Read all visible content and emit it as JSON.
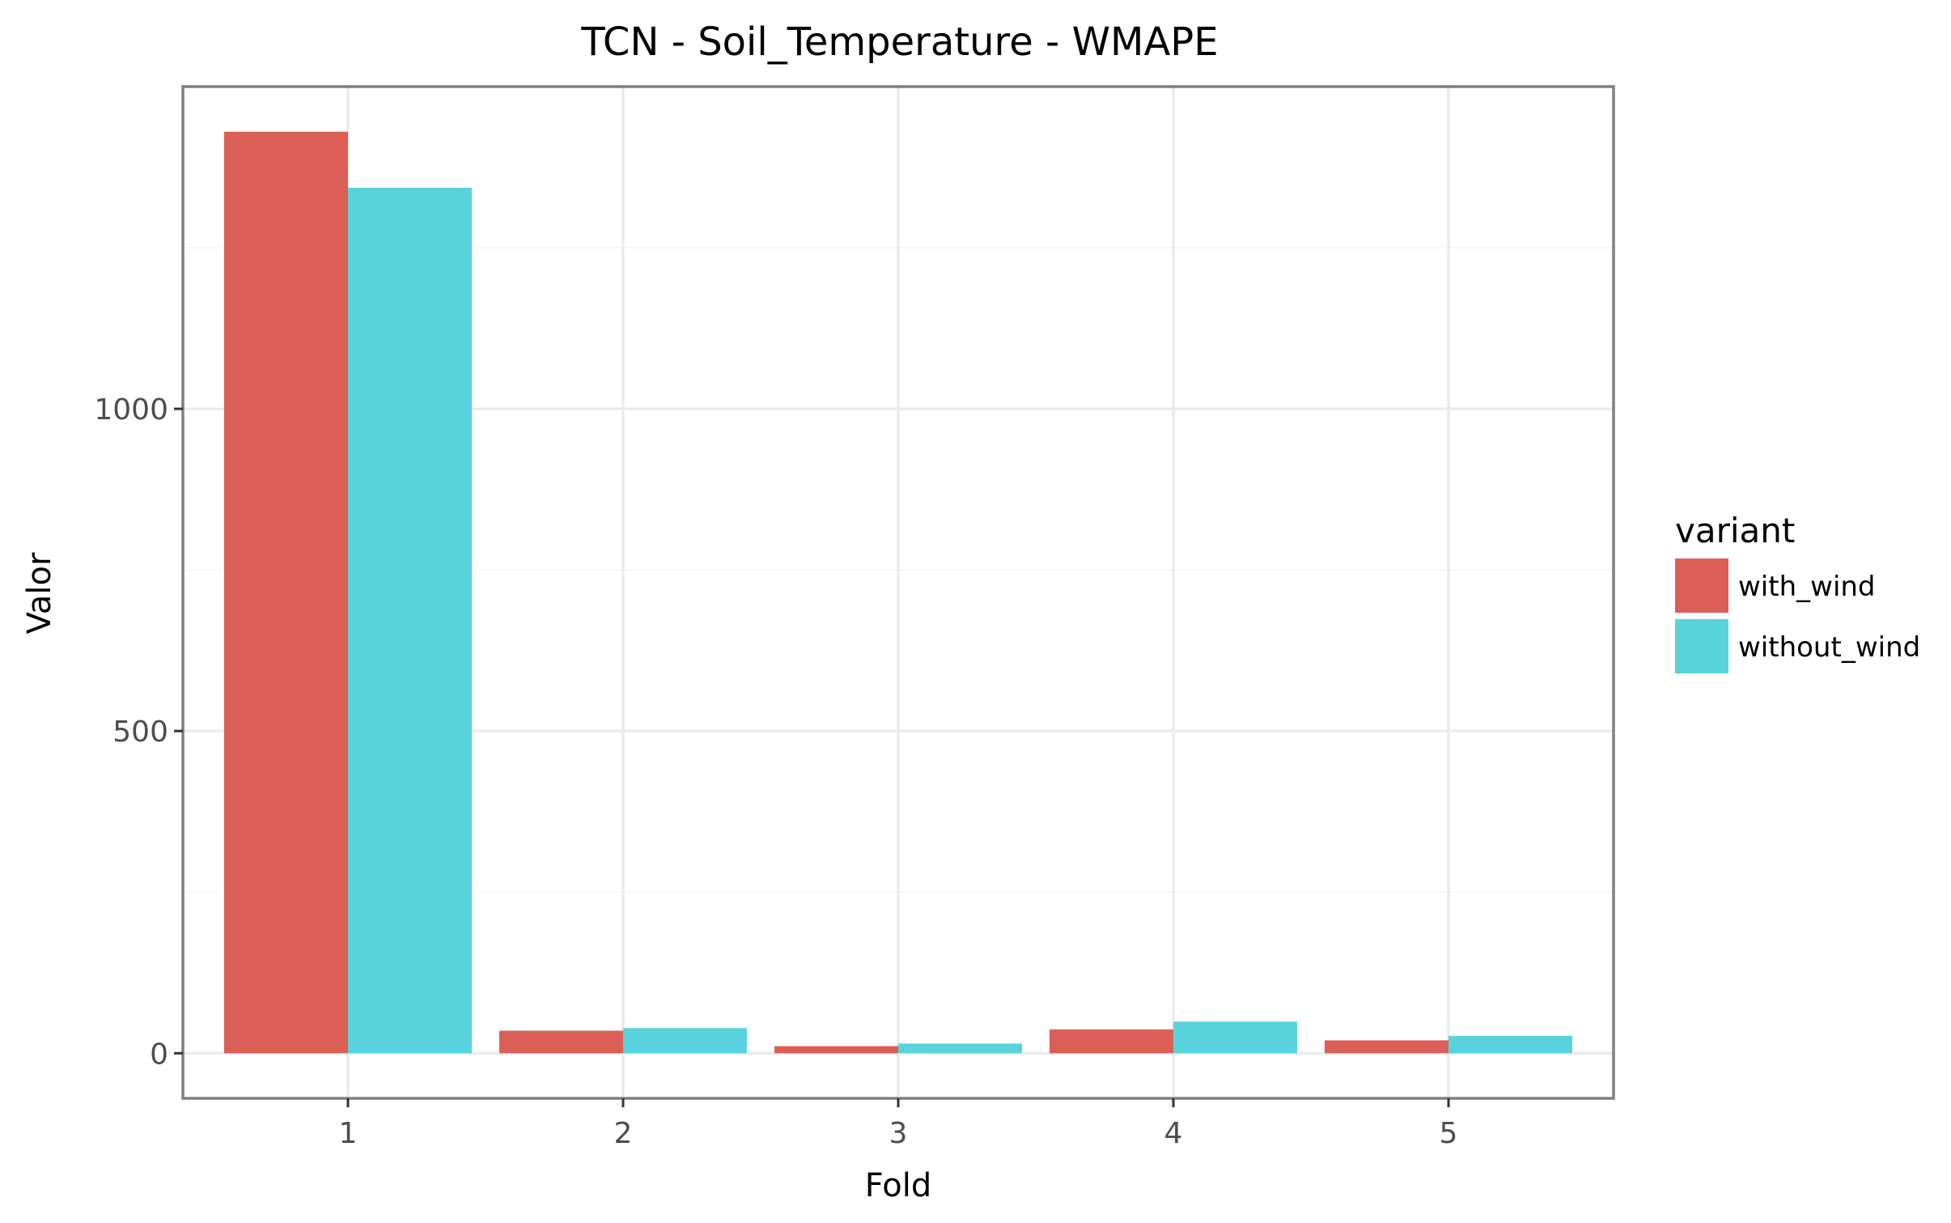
{
  "chart_data": {
    "type": "bar",
    "title": "TCN - Soil_Temperature - WMAPE",
    "xlabel": "Fold",
    "ylabel": "Valor",
    "categories": [
      "1",
      "2",
      "3",
      "4",
      "5"
    ],
    "series": [
      {
        "name": "with_wind",
        "color": "#dc5f57",
        "values": [
          1430,
          35,
          11,
          37,
          20
        ]
      },
      {
        "name": "without_wind",
        "color": "#59d3db",
        "values": [
          1343,
          39,
          15,
          49,
          27
        ]
      }
    ],
    "yticks": [
      0,
      500,
      1000
    ],
    "yticks_minor": [
      250,
      750,
      1250
    ],
    "ylim": [
      -70,
      1500
    ],
    "grid": true,
    "legend": {
      "title": "variant",
      "position": "right"
    }
  }
}
